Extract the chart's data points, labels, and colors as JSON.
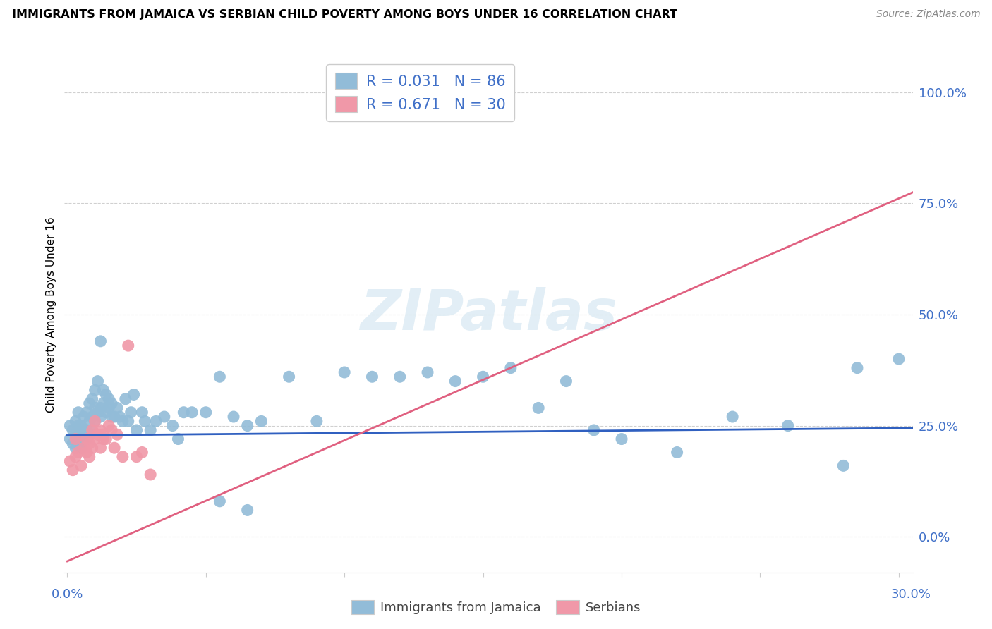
{
  "title": "IMMIGRANTS FROM JAMAICA VS SERBIAN CHILD POVERTY AMONG BOYS UNDER 16 CORRELATION CHART",
  "source": "Source: ZipAtlas.com",
  "ylabel": "Child Poverty Among Boys Under 16",
  "ytick_labels": [
    "0.0%",
    "25.0%",
    "50.0%",
    "75.0%",
    "100.0%"
  ],
  "ytick_vals": [
    0.0,
    0.25,
    0.5,
    0.75,
    1.0
  ],
  "xlim": [
    -0.001,
    0.305
  ],
  "ylim": [
    -0.08,
    1.08
  ],
  "legend_entries": [
    {
      "label_r": "R = 0.031",
      "label_n": "N = 86",
      "color": "#a8c8e8"
    },
    {
      "label_r": "R = 0.671",
      "label_n": "N = 30",
      "color": "#f8b8c8"
    }
  ],
  "watermark": "ZIPatlas",
  "blue_color": "#92bcd8",
  "pink_color": "#f098a8",
  "blue_line_color": "#3060c0",
  "pink_line_color": "#e06080",
  "axis_label_color": "#4070c8",
  "grid_color": "#d0d0d0",
  "blue_intercept": 0.228,
  "blue_slope": 0.055,
  "pink_intercept": -0.055,
  "pink_slope": 2.72,
  "blue_x": [
    0.001,
    0.001,
    0.002,
    0.002,
    0.003,
    0.003,
    0.003,
    0.004,
    0.004,
    0.004,
    0.005,
    0.005,
    0.005,
    0.005,
    0.006,
    0.006,
    0.006,
    0.007,
    0.007,
    0.007,
    0.008,
    0.008,
    0.008,
    0.009,
    0.009,
    0.009,
    0.01,
    0.01,
    0.01,
    0.011,
    0.011,
    0.012,
    0.012,
    0.012,
    0.013,
    0.013,
    0.014,
    0.014,
    0.015,
    0.015,
    0.016,
    0.016,
    0.017,
    0.018,
    0.019,
    0.02,
    0.021,
    0.022,
    0.023,
    0.024,
    0.025,
    0.027,
    0.028,
    0.03,
    0.032,
    0.035,
    0.038,
    0.04,
    0.042,
    0.045,
    0.05,
    0.055,
    0.06,
    0.065,
    0.07,
    0.08,
    0.09,
    0.1,
    0.11,
    0.12,
    0.13,
    0.14,
    0.15,
    0.16,
    0.18,
    0.2,
    0.22,
    0.24,
    0.26,
    0.28,
    0.285,
    0.3,
    0.055,
    0.065,
    0.17,
    0.19
  ],
  "blue_y": [
    0.22,
    0.25,
    0.21,
    0.24,
    0.2,
    0.23,
    0.26,
    0.22,
    0.25,
    0.28,
    0.21,
    0.23,
    0.25,
    0.2,
    0.22,
    0.24,
    0.27,
    0.22,
    0.24,
    0.28,
    0.23,
    0.26,
    0.3,
    0.24,
    0.27,
    0.31,
    0.26,
    0.29,
    0.33,
    0.28,
    0.35,
    0.29,
    0.27,
    0.44,
    0.3,
    0.33,
    0.28,
    0.32,
    0.29,
    0.31,
    0.27,
    0.3,
    0.27,
    0.29,
    0.27,
    0.26,
    0.31,
    0.26,
    0.28,
    0.32,
    0.24,
    0.28,
    0.26,
    0.24,
    0.26,
    0.27,
    0.25,
    0.22,
    0.28,
    0.28,
    0.28,
    0.36,
    0.27,
    0.25,
    0.26,
    0.36,
    0.26,
    0.37,
    0.36,
    0.36,
    0.37,
    0.35,
    0.36,
    0.38,
    0.35,
    0.22,
    0.19,
    0.27,
    0.25,
    0.16,
    0.38,
    0.4,
    0.08,
    0.06,
    0.29,
    0.24
  ],
  "pink_x": [
    0.001,
    0.002,
    0.003,
    0.003,
    0.004,
    0.005,
    0.006,
    0.007,
    0.007,
    0.008,
    0.008,
    0.009,
    0.009,
    0.01,
    0.01,
    0.011,
    0.012,
    0.012,
    0.013,
    0.013,
    0.014,
    0.015,
    0.016,
    0.017,
    0.018,
    0.02,
    0.022,
    0.025,
    0.027,
    0.03
  ],
  "pink_y": [
    0.17,
    0.15,
    0.18,
    0.22,
    0.19,
    0.16,
    0.2,
    0.19,
    0.22,
    0.18,
    0.21,
    0.2,
    0.24,
    0.22,
    0.26,
    0.23,
    0.24,
    0.2,
    0.23,
    0.22,
    0.22,
    0.25,
    0.24,
    0.2,
    0.23,
    0.18,
    0.43,
    0.18,
    0.19,
    0.14
  ]
}
